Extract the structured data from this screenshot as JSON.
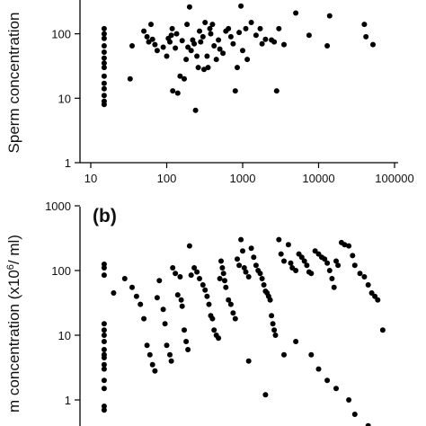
{
  "chart_data": [
    {
      "type": "scatter",
      "panel": "",
      "xscale": "log",
      "yscale": "log",
      "ylabel": "Sperm concentration",
      "xlim": [
        10,
        100000
      ],
      "ylim": [
        1,
        1000
      ],
      "x_ticks": [
        {
          "v": 10,
          "label": "10"
        },
        {
          "v": 100,
          "label": "100"
        },
        {
          "v": 1000,
          "label": "1000"
        },
        {
          "v": 10000,
          "label": "10000"
        },
        {
          "v": 100000,
          "label": "100000"
        }
      ],
      "y_ticks": [
        {
          "v": 1,
          "label": "1"
        },
        {
          "v": 10,
          "label": "10"
        },
        {
          "v": 100,
          "label": "100"
        }
      ],
      "points": [
        [
          15,
          120
        ],
        [
          15,
          100
        ],
        [
          15,
          85
        ],
        [
          15,
          65
        ],
        [
          15,
          52
        ],
        [
          15,
          42
        ],
        [
          15,
          35
        ],
        [
          15,
          30
        ],
        [
          15,
          22
        ],
        [
          15,
          17
        ],
        [
          15,
          14
        ],
        [
          15,
          11
        ],
        [
          15,
          9
        ],
        [
          15,
          8
        ],
        [
          33,
          20
        ],
        [
          35,
          65
        ],
        [
          50,
          110
        ],
        [
          55,
          90
        ],
        [
          58,
          75
        ],
        [
          62,
          140
        ],
        [
          65,
          82
        ],
        [
          70,
          68
        ],
        [
          75,
          55
        ],
        [
          90,
          62
        ],
        [
          100,
          45
        ],
        [
          105,
          85
        ],
        [
          110,
          75
        ],
        [
          115,
          95
        ],
        [
          118,
          120
        ],
        [
          120,
          13
        ],
        [
          130,
          60
        ],
        [
          135,
          100
        ],
        [
          140,
          12
        ],
        [
          150,
          22
        ],
        [
          160,
          78
        ],
        [
          170,
          20
        ],
        [
          180,
          40
        ],
        [
          185,
          140
        ],
        [
          190,
          62
        ],
        [
          200,
          260
        ],
        [
          210,
          55
        ],
        [
          220,
          80
        ],
        [
          230,
          70
        ],
        [
          240,
          6.5
        ],
        [
          250,
          45
        ],
        [
          260,
          30
        ],
        [
          270,
          110
        ],
        [
          280,
          75
        ],
        [
          300,
          90
        ],
        [
          310,
          28
        ],
        [
          320,
          150
        ],
        [
          340,
          45
        ],
        [
          350,
          30
        ],
        [
          370,
          120
        ],
        [
          380,
          100
        ],
        [
          400,
          140
        ],
        [
          420,
          65
        ],
        [
          450,
          40
        ],
        [
          480,
          80
        ],
        [
          500,
          58
        ],
        [
          550,
          50
        ],
        [
          600,
          110
        ],
        [
          650,
          120
        ],
        [
          700,
          90
        ],
        [
          750,
          70
        ],
        [
          800,
          13
        ],
        [
          850,
          30
        ],
        [
          900,
          105
        ],
        [
          950,
          270
        ],
        [
          1000,
          55
        ],
        [
          1100,
          120
        ],
        [
          1150,
          40
        ],
        [
          1300,
          150
        ],
        [
          1500,
          95
        ],
        [
          1700,
          120
        ],
        [
          1800,
          70
        ],
        [
          2000,
          82
        ],
        [
          2400,
          80
        ],
        [
          2600,
          75
        ],
        [
          2800,
          13
        ],
        [
          3000,
          120
        ],
        [
          3500,
          68
        ],
        [
          5000,
          210
        ],
        [
          7500,
          95
        ],
        [
          13000,
          65
        ],
        [
          14000,
          190
        ],
        [
          40000,
          140
        ],
        [
          42000,
          90
        ],
        [
          52000,
          68
        ]
      ]
    },
    {
      "type": "scatter",
      "panel": "(b)",
      "xscale": "log",
      "yscale": "log",
      "ylabel": "m concentration (x10",
      "ylabel_sup": "6",
      "ylabel_tail": "/ ml)",
      "xlim": [
        10,
        100000
      ],
      "ylim": [
        0.3,
        1000
      ],
      "y_ticks": [
        {
          "v": 1,
          "label": "1"
        },
        {
          "v": 10,
          "label": "10"
        },
        {
          "v": 100,
          "label": "100"
        },
        {
          "v": 1000,
          "label": "1000"
        }
      ],
      "points": [
        [
          15,
          125
        ],
        [
          15,
          110
        ],
        [
          15,
          85
        ],
        [
          15,
          15
        ],
        [
          15,
          12
        ],
        [
          15,
          10
        ],
        [
          15,
          8
        ],
        [
          15,
          6
        ],
        [
          15,
          5
        ],
        [
          15,
          4.5
        ],
        [
          15,
          3.5
        ],
        [
          15,
          3
        ],
        [
          15,
          2
        ],
        [
          15,
          1.5
        ],
        [
          15,
          0.8
        ],
        [
          15,
          0.7
        ],
        [
          20,
          45
        ],
        [
          28,
          75
        ],
        [
          35,
          55
        ],
        [
          40,
          40
        ],
        [
          45,
          30
        ],
        [
          50,
          18
        ],
        [
          55,
          7
        ],
        [
          60,
          5
        ],
        [
          65,
          3.5
        ],
        [
          70,
          2.8
        ],
        [
          75,
          38
        ],
        [
          80,
          70
        ],
        [
          90,
          25
        ],
        [
          95,
          15
        ],
        [
          100,
          7
        ],
        [
          110,
          5
        ],
        [
          115,
          4
        ],
        [
          120,
          110
        ],
        [
          130,
          90
        ],
        [
          140,
          42
        ],
        [
          150,
          80
        ],
        [
          155,
          35
        ],
        [
          160,
          28
        ],
        [
          170,
          12
        ],
        [
          180,
          8
        ],
        [
          190,
          6
        ],
        [
          200,
          240
        ],
        [
          210,
          85
        ],
        [
          230,
          110
        ],
        [
          250,
          95
        ],
        [
          270,
          75
        ],
        [
          300,
          60
        ],
        [
          320,
          50
        ],
        [
          340,
          40
        ],
        [
          360,
          30
        ],
        [
          380,
          20
        ],
        [
          400,
          18
        ],
        [
          420,
          12
        ],
        [
          450,
          10
        ],
        [
          480,
          9
        ],
        [
          500,
          75
        ],
        [
          520,
          140
        ],
        [
          540,
          110
        ],
        [
          560,
          90
        ],
        [
          580,
          70
        ],
        [
          600,
          55
        ],
        [
          650,
          35
        ],
        [
          700,
          30
        ],
        [
          750,
          22
        ],
        [
          800,
          18
        ],
        [
          850,
          150
        ],
        [
          900,
          120
        ],
        [
          950,
          300
        ],
        [
          1000,
          200
        ],
        [
          1050,
          110
        ],
        [
          1100,
          95
        ],
        [
          1200,
          80
        ],
        [
          1300,
          220
        ],
        [
          1400,
          160
        ],
        [
          1500,
          120
        ],
        [
          1600,
          100
        ],
        [
          1700,
          90
        ],
        [
          1800,
          75
        ],
        [
          1900,
          60
        ],
        [
          2000,
          48
        ],
        [
          2100,
          45
        ],
        [
          2200,
          40
        ],
        [
          2300,
          35
        ],
        [
          2400,
          20
        ],
        [
          2500,
          15
        ],
        [
          2600,
          12
        ],
        [
          2700,
          10
        ],
        [
          3000,
          300
        ],
        [
          3200,
          180
        ],
        [
          3500,
          140
        ],
        [
          4000,
          250
        ],
        [
          4300,
          130
        ],
        [
          4500,
          110
        ],
        [
          5000,
          100
        ],
        [
          5500,
          180
        ],
        [
          6000,
          160
        ],
        [
          6500,
          140
        ],
        [
          7000,
          120
        ],
        [
          7500,
          95
        ],
        [
          8000,
          90
        ],
        [
          9000,
          200
        ],
        [
          10000,
          180
        ],
        [
          11000,
          160
        ],
        [
          12000,
          150
        ],
        [
          13000,
          130
        ],
        [
          14000,
          100
        ],
        [
          15000,
          75
        ],
        [
          16000,
          55
        ],
        [
          17000,
          140
        ],
        [
          18000,
          120
        ],
        [
          20000,
          270
        ],
        [
          22000,
          250
        ],
        [
          25000,
          240
        ],
        [
          28000,
          170
        ],
        [
          30000,
          120
        ],
        [
          35000,
          90
        ],
        [
          40000,
          80
        ],
        [
          45000,
          60
        ],
        [
          50000,
          45
        ],
        [
          55000,
          40
        ],
        [
          60000,
          35
        ],
        [
          1200,
          4
        ],
        [
          2000,
          1.2
        ],
        [
          3500,
          5
        ],
        [
          5000,
          8
        ],
        [
          8000,
          5
        ],
        [
          10000,
          3
        ],
        [
          13000,
          2
        ],
        [
          17000,
          1.5
        ],
        [
          25000,
          1
        ],
        [
          30000,
          0.6
        ],
        [
          45000,
          0.4
        ],
        [
          60000,
          0.35
        ],
        [
          70000,
          12
        ],
        [
          2200,
          0.32
        ],
        [
          800,
          0.33
        ]
      ]
    }
  ]
}
